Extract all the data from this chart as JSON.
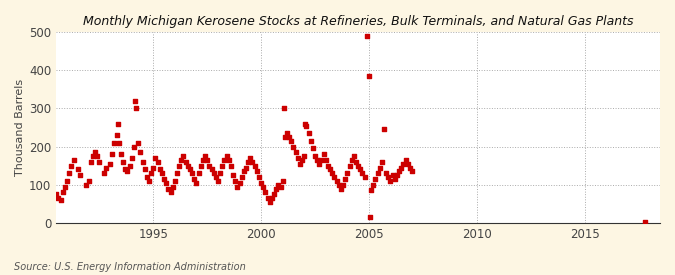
{
  "title": "Monthly Michigan Kerosene Stocks at Refineries, Bulk Terminals, and Natural Gas Plants",
  "ylabel": "Thousand Barrels",
  "source": "Source: U.S. Energy Information Administration",
  "background_color": "#fdf6e3",
  "plot_background": "#ffffff",
  "grid_color": "#aaaaaa",
  "marker_color": "#cc0000",
  "xlim": [
    1990.5,
    2018.5
  ],
  "ylim": [
    0,
    500
  ],
  "yticks": [
    0,
    100,
    200,
    300,
    400,
    500
  ],
  "xticks": [
    1995,
    2000,
    2005,
    2010,
    2015
  ],
  "data": [
    [
      1990.5,
      75
    ],
    [
      1990.6,
      65
    ],
    [
      1990.7,
      60
    ],
    [
      1990.8,
      80
    ],
    [
      1990.9,
      95
    ],
    [
      1991.0,
      110
    ],
    [
      1991.1,
      130
    ],
    [
      1991.2,
      150
    ],
    [
      1991.3,
      165
    ],
    [
      1991.5,
      140
    ],
    [
      1991.6,
      125
    ],
    [
      1991.9,
      100
    ],
    [
      1992.0,
      110
    ],
    [
      1992.1,
      160
    ],
    [
      1992.2,
      175
    ],
    [
      1992.3,
      185
    ],
    [
      1992.4,
      175
    ],
    [
      1992.5,
      160
    ],
    [
      1992.7,
      130
    ],
    [
      1992.8,
      145
    ],
    [
      1993.0,
      155
    ],
    [
      1993.1,
      180
    ],
    [
      1993.2,
      210
    ],
    [
      1993.3,
      230
    ],
    [
      1993.35,
      260
    ],
    [
      1993.4,
      210
    ],
    [
      1993.5,
      180
    ],
    [
      1993.6,
      160
    ],
    [
      1993.7,
      140
    ],
    [
      1993.8,
      135
    ],
    [
      1993.9,
      150
    ],
    [
      1994.0,
      170
    ],
    [
      1994.1,
      200
    ],
    [
      1994.15,
      320
    ],
    [
      1994.2,
      300
    ],
    [
      1994.3,
      210
    ],
    [
      1994.4,
      185
    ],
    [
      1994.5,
      160
    ],
    [
      1994.6,
      140
    ],
    [
      1994.7,
      120
    ],
    [
      1994.8,
      110
    ],
    [
      1994.9,
      130
    ],
    [
      1995.0,
      145
    ],
    [
      1995.1,
      170
    ],
    [
      1995.2,
      160
    ],
    [
      1995.3,
      140
    ],
    [
      1995.4,
      130
    ],
    [
      1995.5,
      115
    ],
    [
      1995.6,
      105
    ],
    [
      1995.7,
      90
    ],
    [
      1995.8,
      80
    ],
    [
      1995.9,
      95
    ],
    [
      1996.0,
      110
    ],
    [
      1996.1,
      130
    ],
    [
      1996.2,
      150
    ],
    [
      1996.3,
      165
    ],
    [
      1996.4,
      175
    ],
    [
      1996.5,
      160
    ],
    [
      1996.6,
      150
    ],
    [
      1996.7,
      140
    ],
    [
      1996.8,
      130
    ],
    [
      1996.9,
      115
    ],
    [
      1997.0,
      105
    ],
    [
      1997.1,
      130
    ],
    [
      1997.2,
      150
    ],
    [
      1997.3,
      165
    ],
    [
      1997.4,
      175
    ],
    [
      1997.5,
      165
    ],
    [
      1997.6,
      150
    ],
    [
      1997.7,
      140
    ],
    [
      1997.8,
      130
    ],
    [
      1997.9,
      120
    ],
    [
      1998.0,
      110
    ],
    [
      1998.1,
      130
    ],
    [
      1998.2,
      150
    ],
    [
      1998.3,
      165
    ],
    [
      1998.4,
      175
    ],
    [
      1998.5,
      165
    ],
    [
      1998.6,
      150
    ],
    [
      1998.7,
      125
    ],
    [
      1998.8,
      110
    ],
    [
      1998.9,
      95
    ],
    [
      1999.0,
      105
    ],
    [
      1999.1,
      120
    ],
    [
      1999.2,
      135
    ],
    [
      1999.3,
      145
    ],
    [
      1999.4,
      160
    ],
    [
      1999.5,
      170
    ],
    [
      1999.6,
      160
    ],
    [
      1999.7,
      150
    ],
    [
      1999.8,
      135
    ],
    [
      1999.9,
      120
    ],
    [
      2000.0,
      105
    ],
    [
      2000.1,
      95
    ],
    [
      2000.2,
      80
    ],
    [
      2000.3,
      65
    ],
    [
      2000.4,
      55
    ],
    [
      2000.5,
      65
    ],
    [
      2000.6,
      75
    ],
    [
      2000.7,
      90
    ],
    [
      2000.8,
      100
    ],
    [
      2000.9,
      95
    ],
    [
      2001.0,
      110
    ],
    [
      2001.05,
      300
    ],
    [
      2001.1,
      225
    ],
    [
      2001.2,
      235
    ],
    [
      2001.3,
      225
    ],
    [
      2001.4,
      215
    ],
    [
      2001.5,
      200
    ],
    [
      2001.6,
      185
    ],
    [
      2001.7,
      170
    ],
    [
      2001.8,
      155
    ],
    [
      2001.9,
      165
    ],
    [
      2002.0,
      175
    ],
    [
      2002.05,
      260
    ],
    [
      2002.1,
      255
    ],
    [
      2002.2,
      235
    ],
    [
      2002.3,
      215
    ],
    [
      2002.4,
      195
    ],
    [
      2002.5,
      175
    ],
    [
      2002.6,
      165
    ],
    [
      2002.7,
      155
    ],
    [
      2002.8,
      165
    ],
    [
      2002.9,
      180
    ],
    [
      2003.0,
      165
    ],
    [
      2003.1,
      150
    ],
    [
      2003.2,
      140
    ],
    [
      2003.3,
      130
    ],
    [
      2003.4,
      120
    ],
    [
      2003.5,
      110
    ],
    [
      2003.6,
      100
    ],
    [
      2003.7,
      90
    ],
    [
      2003.8,
      100
    ],
    [
      2003.9,
      115
    ],
    [
      2004.0,
      130
    ],
    [
      2004.1,
      150
    ],
    [
      2004.2,
      165
    ],
    [
      2004.3,
      175
    ],
    [
      2004.4,
      160
    ],
    [
      2004.5,
      150
    ],
    [
      2004.6,
      140
    ],
    [
      2004.7,
      130
    ],
    [
      2004.8,
      120
    ],
    [
      2004.9,
      490
    ],
    [
      2005.0,
      385
    ],
    [
      2005.05,
      15
    ],
    [
      2005.1,
      85
    ],
    [
      2005.2,
      100
    ],
    [
      2005.3,
      115
    ],
    [
      2005.4,
      130
    ],
    [
      2005.5,
      145
    ],
    [
      2005.6,
      160
    ],
    [
      2005.7,
      245
    ],
    [
      2005.8,
      130
    ],
    [
      2005.9,
      120
    ],
    [
      2006.0,
      110
    ],
    [
      2006.1,
      125
    ],
    [
      2006.2,
      115
    ],
    [
      2006.3,
      125
    ],
    [
      2006.4,
      135
    ],
    [
      2006.5,
      145
    ],
    [
      2006.6,
      155
    ],
    [
      2006.7,
      165
    ],
    [
      2006.8,
      155
    ],
    [
      2006.9,
      145
    ],
    [
      2007.0,
      135
    ],
    [
      2017.8,
      3
    ]
  ]
}
